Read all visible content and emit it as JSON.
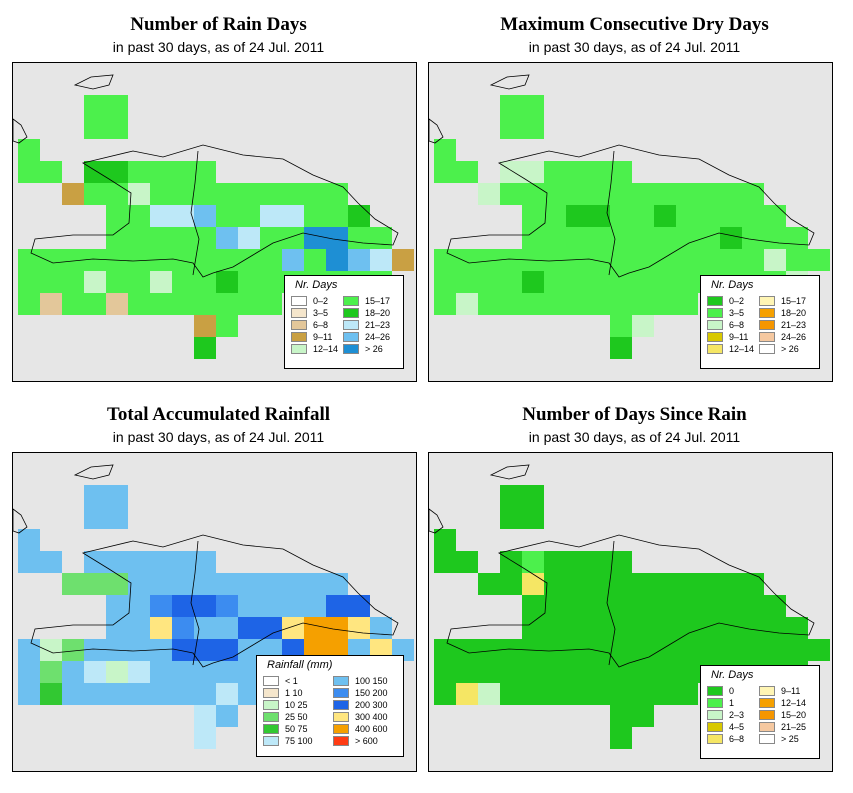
{
  "panels": [
    {
      "id": "rain-days",
      "title": "Number of Rain Days",
      "subtitle": "in past 30 days, as of  24 Jul. 2011",
      "legend": {
        "title": "Nr. Days",
        "col1": [
          {
            "label": "0–2",
            "color": "#ffffff"
          },
          {
            "label": "3–5",
            "color": "#f5e6cc"
          },
          {
            "label": "6–8",
            "color": "#e3c79a"
          },
          {
            "label": "9–11",
            "color": "#c9a043"
          },
          {
            "label": "12–14",
            "color": "#c8f5c8"
          }
        ],
        "col2": [
          {
            "label": "15–17",
            "color": "#4cf04c"
          },
          {
            "label": "18–20",
            "color": "#1ec81e"
          },
          {
            "label": "21–23",
            "color": "#bde8f8"
          },
          {
            "label": "24–26",
            "color": "#6ec0f0"
          },
          {
            "label": "> 26",
            "color": "#1e8fd4"
          }
        ]
      },
      "base_color": "#4cf04c",
      "patches": [
        {
          "c": 3,
          "r": 3,
          "color": "#1ec81e"
        },
        {
          "c": 6,
          "r": 5,
          "color": "#bde8f8"
        },
        {
          "c": 7,
          "r": 5,
          "color": "#bde8f8"
        },
        {
          "c": 8,
          "r": 5,
          "color": "#6ec0f0"
        },
        {
          "c": 9,
          "r": 6,
          "color": "#6ec0f0"
        },
        {
          "c": 10,
          "r": 6,
          "color": "#bde8f8"
        },
        {
          "c": 11,
          "r": 5,
          "color": "#bde8f8"
        },
        {
          "c": 12,
          "r": 5,
          "color": "#bde8f8"
        },
        {
          "c": 13,
          "r": 6,
          "color": "#1e8fd4"
        },
        {
          "c": 14,
          "r": 6,
          "color": "#1e8fd4"
        },
        {
          "c": 14,
          "r": 7,
          "color": "#1e8fd4"
        },
        {
          "c": 15,
          "r": 7,
          "color": "#6ec0f0"
        },
        {
          "c": 12,
          "r": 7,
          "color": "#6ec0f0"
        },
        {
          "c": 16,
          "r": 7,
          "color": "#bde8f8"
        },
        {
          "c": 5,
          "r": 4,
          "color": "#c8f5c8"
        },
        {
          "c": 2,
          "r": 4,
          "color": "#c9a043"
        },
        {
          "c": 4,
          "r": 3,
          "color": "#1ec81e"
        },
        {
          "c": 15,
          "r": 5,
          "color": "#1ec81e"
        },
        {
          "c": 17,
          "r": 7,
          "color": "#c9a043"
        },
        {
          "c": 1,
          "r": 9,
          "color": "#e3c79a"
        },
        {
          "c": 4,
          "r": 9,
          "color": "#e3c79a"
        },
        {
          "c": 8,
          "r": 10,
          "color": "#c9a043"
        },
        {
          "c": 8,
          "r": 11,
          "color": "#1ec81e"
        },
        {
          "c": 6,
          "r": 8,
          "color": "#c8f5c8"
        },
        {
          "c": 9,
          "r": 8,
          "color": "#1ec81e"
        },
        {
          "c": 3,
          "r": 8,
          "color": "#c8f5c8"
        }
      ]
    },
    {
      "id": "dry-days",
      "title": "Maximum Consecutive Dry Days",
      "subtitle": "in past 30 days, as of  24 Jul. 2011",
      "legend": {
        "title": "Nr. Days",
        "col1": [
          {
            "label": "0–2",
            "color": "#1ec81e"
          },
          {
            "label": "3–5",
            "color": "#4cf04c"
          },
          {
            "label": "6–8",
            "color": "#c8f5c8"
          },
          {
            "label": "9–11",
            "color": "#d8c800"
          },
          {
            "label": "12–14",
            "color": "#f5e664"
          }
        ],
        "col2": [
          {
            "label": "15–17",
            "color": "#fff5b4"
          },
          {
            "label": "18–20",
            "color": "#f5a000"
          },
          {
            "label": "21–23",
            "color": "#f59600"
          },
          {
            "label": "24–26",
            "color": "#f5c8a0"
          },
          {
            "label": "> 26",
            "color": "#ffffff"
          }
        ]
      },
      "base_color": "#4cf04c",
      "patches": [
        {
          "c": 6,
          "r": 5,
          "color": "#1ec81e"
        },
        {
          "c": 7,
          "r": 5,
          "color": "#1ec81e"
        },
        {
          "c": 10,
          "r": 5,
          "color": "#1ec81e"
        },
        {
          "c": 3,
          "r": 3,
          "color": "#c8f5c8"
        },
        {
          "c": 4,
          "r": 3,
          "color": "#c8f5c8"
        },
        {
          "c": 2,
          "r": 4,
          "color": "#c8f5c8"
        },
        {
          "c": 15,
          "r": 7,
          "color": "#c8f5c8"
        },
        {
          "c": 16,
          "r": 8,
          "color": "#c8f5c8"
        },
        {
          "c": 1,
          "r": 9,
          "color": "#c8f5c8"
        },
        {
          "c": 9,
          "r": 10,
          "color": "#c8f5c8"
        },
        {
          "c": 8,
          "r": 11,
          "color": "#1ec81e"
        },
        {
          "c": 13,
          "r": 6,
          "color": "#1ec81e"
        },
        {
          "c": 12,
          "r": 9,
          "color": "#c8f5c8"
        },
        {
          "c": 4,
          "r": 8,
          "color": "#1ec81e"
        }
      ]
    },
    {
      "id": "rainfall",
      "title": "Total Accumulated Rainfall",
      "subtitle": "in past 30 days, as of  24 Jul. 2011",
      "legend": {
        "title": "Rainfall (mm)",
        "col1": [
          {
            "label": "< 1",
            "color": "#ffffff"
          },
          {
            "label": "1   10",
            "color": "#f5e6cc"
          },
          {
            "label": "10   25",
            "color": "#c8f5c8"
          },
          {
            "label": "25   50",
            "color": "#6ee06e"
          },
          {
            "label": "50   75",
            "color": "#32c832"
          },
          {
            "label": "75   100",
            "color": "#bde8f8"
          }
        ],
        "col2": [
          {
            "label": "100  150",
            "color": "#6ec0f0"
          },
          {
            "label": "150  200",
            "color": "#3c8cf0"
          },
          {
            "label": "200  300",
            "color": "#1e64e6"
          },
          {
            "label": "300  400",
            "color": "#ffe680"
          },
          {
            "label": "400  600",
            "color": "#f5a000"
          },
          {
            "label": "> 600",
            "color": "#ff3c14"
          }
        ]
      },
      "base_color": "#6ec0f0",
      "patches": [
        {
          "c": 6,
          "r": 5,
          "color": "#3c8cf0"
        },
        {
          "c": 7,
          "r": 5,
          "color": "#1e64e6"
        },
        {
          "c": 8,
          "r": 5,
          "color": "#1e64e6"
        },
        {
          "c": 9,
          "r": 5,
          "color": "#3c8cf0"
        },
        {
          "c": 10,
          "r": 6,
          "color": "#1e64e6"
        },
        {
          "c": 11,
          "r": 6,
          "color": "#1e64e6"
        },
        {
          "c": 12,
          "r": 6,
          "color": "#ffe680"
        },
        {
          "c": 13,
          "r": 6,
          "color": "#f5a000"
        },
        {
          "c": 14,
          "r": 6,
          "color": "#f5a000"
        },
        {
          "c": 15,
          "r": 6,
          "color": "#ffe680"
        },
        {
          "c": 14,
          "r": 5,
          "color": "#1e64e6"
        },
        {
          "c": 15,
          "r": 5,
          "color": "#1e64e6"
        },
        {
          "c": 13,
          "r": 7,
          "color": "#f5a000"
        },
        {
          "c": 14,
          "r": 7,
          "color": "#f5a000"
        },
        {
          "c": 12,
          "r": 7,
          "color": "#1e64e6"
        },
        {
          "c": 7,
          "r": 7,
          "color": "#1e64e6"
        },
        {
          "c": 8,
          "r": 7,
          "color": "#1e64e6"
        },
        {
          "c": 9,
          "r": 7,
          "color": "#1e64e6"
        },
        {
          "c": 6,
          "r": 6,
          "color": "#ffe680"
        },
        {
          "c": 7,
          "r": 6,
          "color": "#3c8cf0"
        },
        {
          "c": 1,
          "r": 7,
          "color": "#c8f5c8"
        },
        {
          "c": 2,
          "r": 7,
          "color": "#6ee06e"
        },
        {
          "c": 1,
          "r": 8,
          "color": "#6ee06e"
        },
        {
          "c": 3,
          "r": 8,
          "color": "#bde8f8"
        },
        {
          "c": 4,
          "r": 8,
          "color": "#c8f5c8"
        },
        {
          "c": 5,
          "r": 8,
          "color": "#bde8f8"
        },
        {
          "c": 4,
          "r": 4,
          "color": "#6ee06e"
        },
        {
          "c": 3,
          "r": 4,
          "color": "#6ee06e"
        },
        {
          "c": 2,
          "r": 4,
          "color": "#6ee06e"
        },
        {
          "c": 1,
          "r": 9,
          "color": "#32c832"
        },
        {
          "c": 8,
          "r": 10,
          "color": "#bde8f8"
        },
        {
          "c": 8,
          "r": 11,
          "color": "#bde8f8"
        },
        {
          "c": 16,
          "r": 7,
          "color": "#ffe680"
        },
        {
          "c": 9,
          "r": 9,
          "color": "#bde8f8"
        }
      ]
    },
    {
      "id": "since-rain",
      "title": "Number of Days Since Rain",
      "subtitle": "in past 30 days, as of  24 Jul. 2011",
      "legend": {
        "title": "Nr. Days",
        "col1": [
          {
            "label": "0",
            "color": "#1ec81e"
          },
          {
            "label": "1",
            "color": "#4cf04c"
          },
          {
            "label": "2–3",
            "color": "#c8f5c8"
          },
          {
            "label": "4–5",
            "color": "#d8c800"
          },
          {
            "label": "6–8",
            "color": "#f5e664"
          }
        ],
        "col2": [
          {
            "label": "9–11",
            "color": "#fff5b4"
          },
          {
            "label": "12–14",
            "color": "#f5a000"
          },
          {
            "label": "15–20",
            "color": "#f59600"
          },
          {
            "label": "21–25",
            "color": "#f5c8a0"
          },
          {
            "label": "> 25",
            "color": "#ffffff"
          }
        ]
      },
      "base_color": "#1ec81e",
      "patches": [
        {
          "c": 4,
          "r": 4,
          "color": "#f5e664"
        },
        {
          "c": 1,
          "r": 9,
          "color": "#f5e664"
        },
        {
          "c": 2,
          "r": 9,
          "color": "#c8f5c8"
        },
        {
          "c": 4,
          "r": 3,
          "color": "#4cf04c"
        }
      ]
    }
  ]
}
